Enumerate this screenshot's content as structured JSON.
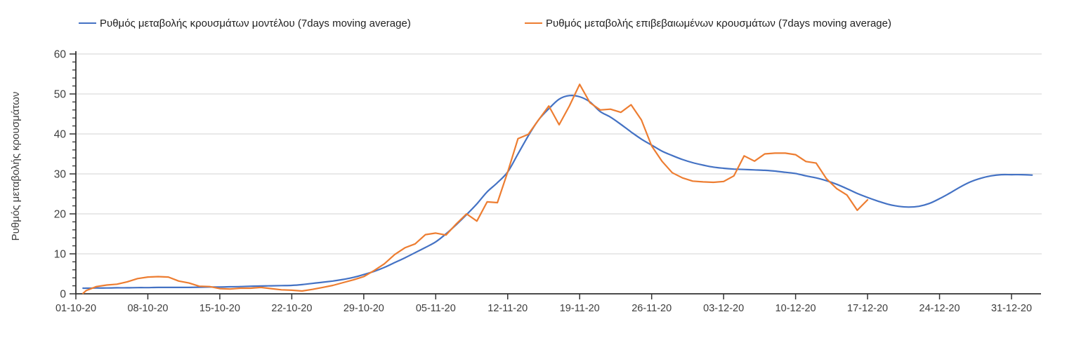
{
  "chart_data": {
    "type": "line",
    "title": "",
    "xlabel": "",
    "ylabel": "Ρυθμός μεταβολής κρουσμάτων",
    "x_unit": "days since 01-10-20",
    "grid": true,
    "legend_position": "top",
    "y_axis": {
      "min": 0,
      "max": 60,
      "major_step": 10,
      "minor_step": 2
    },
    "x_ticks": [
      "01-10-20",
      "08-10-20",
      "15-10-20",
      "22-10-20",
      "29-10-20",
      "05-11-20",
      "12-11-20",
      "19-11-20",
      "26-11-20",
      "03-12-20",
      "10-12-20",
      "17-12-20",
      "24-12-20",
      "31-12-20"
    ],
    "series": [
      {
        "name": "Ρυθμός μεταβολής κρουσμάτων μοντέλου (7days moving average)",
        "color": "#4472c4",
        "smooth": true,
        "points": [
          [
            0.7,
            1.4
          ],
          [
            1,
            1.4
          ],
          [
            2,
            1.45
          ],
          [
            3,
            1.45
          ],
          [
            4,
            1.5
          ],
          [
            5,
            1.5
          ],
          [
            6,
            1.55
          ],
          [
            7,
            1.55
          ],
          [
            8,
            1.6
          ],
          [
            9,
            1.6
          ],
          [
            10,
            1.6
          ],
          [
            11,
            1.6
          ],
          [
            12,
            1.65
          ],
          [
            13,
            1.7
          ],
          [
            14,
            1.7
          ],
          [
            15,
            1.75
          ],
          [
            16,
            1.8
          ],
          [
            17,
            1.9
          ],
          [
            18,
            1.95
          ],
          [
            19,
            2.0
          ],
          [
            20,
            2.05
          ],
          [
            21,
            2.1
          ],
          [
            22,
            2.3
          ],
          [
            23,
            2.6
          ],
          [
            24,
            2.9
          ],
          [
            25,
            3.2
          ],
          [
            26,
            3.6
          ],
          [
            27,
            4.1
          ],
          [
            28,
            4.8
          ],
          [
            29,
            5.6
          ],
          [
            30,
            6.6
          ],
          [
            31,
            7.8
          ],
          [
            32,
            9.0
          ],
          [
            33,
            10.3
          ],
          [
            34,
            11.6
          ],
          [
            35,
            13.0
          ],
          [
            36,
            15.0
          ],
          [
            37,
            17.3
          ],
          [
            38,
            19.8
          ],
          [
            39,
            22.5
          ],
          [
            40,
            25.5
          ],
          [
            41,
            27.8
          ],
          [
            42,
            30.5
          ],
          [
            43,
            35.0
          ],
          [
            44,
            39.5
          ],
          [
            45,
            43.5
          ],
          [
            46,
            46.3
          ],
          [
            47,
            48.7
          ],
          [
            48,
            49.6
          ],
          [
            49,
            49.3
          ],
          [
            50,
            48.0
          ],
          [
            51,
            45.6
          ],
          [
            52,
            44.2
          ],
          [
            53,
            42.4
          ],
          [
            54,
            40.5
          ],
          [
            55,
            38.7
          ],
          [
            56,
            37.2
          ],
          [
            57,
            35.7
          ],
          [
            58,
            34.6
          ],
          [
            59,
            33.6
          ],
          [
            60,
            32.8
          ],
          [
            61,
            32.2
          ],
          [
            62,
            31.7
          ],
          [
            63,
            31.4
          ],
          [
            64,
            31.2
          ],
          [
            65,
            31.1
          ],
          [
            66,
            31.0
          ],
          [
            67,
            30.9
          ],
          [
            68,
            30.7
          ],
          [
            69,
            30.4
          ],
          [
            70,
            30.1
          ],
          [
            71,
            29.5
          ],
          [
            72,
            29.0
          ],
          [
            73,
            28.3
          ],
          [
            74,
            27.4
          ],
          [
            75,
            26.3
          ],
          [
            76,
            25.1
          ],
          [
            77,
            24.1
          ],
          [
            78,
            23.2
          ],
          [
            79,
            22.4
          ],
          [
            80,
            21.9
          ],
          [
            81,
            21.7
          ],
          [
            82,
            21.9
          ],
          [
            83,
            22.6
          ],
          [
            84,
            23.8
          ],
          [
            85,
            25.2
          ],
          [
            86,
            26.7
          ],
          [
            87,
            28.0
          ],
          [
            88,
            28.9
          ],
          [
            89,
            29.5
          ],
          [
            90,
            29.8
          ],
          [
            91,
            29.8
          ],
          [
            92,
            29.8
          ],
          [
            93,
            29.7
          ]
        ]
      },
      {
        "name": "Ρυθμός μεταβολής επιβεβαιωμένων κρουσμάτων (7days moving average)",
        "color": "#ed7d31",
        "smooth": false,
        "points": [
          [
            0.7,
            0.1
          ],
          [
            1,
            0.8
          ],
          [
            2,
            1.8
          ],
          [
            3,
            2.2
          ],
          [
            4,
            2.4
          ],
          [
            5,
            3.0
          ],
          [
            6,
            3.8
          ],
          [
            7,
            4.2
          ],
          [
            8,
            4.3
          ],
          [
            9,
            4.2
          ],
          [
            10,
            3.2
          ],
          [
            11,
            2.7
          ],
          [
            12,
            1.9
          ],
          [
            13,
            1.8
          ],
          [
            14,
            1.3
          ],
          [
            15,
            1.2
          ],
          [
            16,
            1.4
          ],
          [
            17,
            1.4
          ],
          [
            18,
            1.6
          ],
          [
            19,
            1.3
          ],
          [
            20,
            1.0
          ],
          [
            21,
            0.9
          ],
          [
            22,
            0.7
          ],
          [
            23,
            1.1
          ],
          [
            24,
            1.6
          ],
          [
            25,
            2.1
          ],
          [
            26,
            2.8
          ],
          [
            27,
            3.5
          ],
          [
            28,
            4.3
          ],
          [
            29,
            5.8
          ],
          [
            30,
            7.5
          ],
          [
            31,
            9.8
          ],
          [
            32,
            11.5
          ],
          [
            33,
            12.5
          ],
          [
            34,
            14.8
          ],
          [
            35,
            15.2
          ],
          [
            36,
            14.7
          ],
          [
            37,
            17.5
          ],
          [
            38,
            20.0
          ],
          [
            39,
            18.2
          ],
          [
            40,
            23.0
          ],
          [
            41,
            22.8
          ],
          [
            42,
            30.5
          ],
          [
            43,
            38.8
          ],
          [
            44,
            39.9
          ],
          [
            45,
            43.5
          ],
          [
            46,
            47.0
          ],
          [
            47,
            42.3
          ],
          [
            48,
            47.0
          ],
          [
            49,
            52.4
          ],
          [
            50,
            47.8
          ],
          [
            51,
            46.0
          ],
          [
            52,
            46.2
          ],
          [
            53,
            45.4
          ],
          [
            54,
            47.3
          ],
          [
            55,
            43.5
          ],
          [
            56,
            37.0
          ],
          [
            57,
            33.2
          ],
          [
            58,
            30.3
          ],
          [
            59,
            29.0
          ],
          [
            60,
            28.2
          ],
          [
            61,
            28.0
          ],
          [
            62,
            27.9
          ],
          [
            63,
            28.1
          ],
          [
            64,
            29.5
          ],
          [
            65,
            34.5
          ],
          [
            66,
            33.2
          ],
          [
            67,
            35.0
          ],
          [
            68,
            35.2
          ],
          [
            69,
            35.2
          ],
          [
            70,
            34.8
          ],
          [
            71,
            33.1
          ],
          [
            72,
            32.7
          ],
          [
            73,
            28.8
          ],
          [
            74,
            26.3
          ],
          [
            75,
            24.7
          ],
          [
            76,
            20.9
          ],
          [
            77,
            23.5
          ]
        ]
      }
    ],
    "colors": {
      "gridline": "#e2e2e2",
      "axis": "#333333",
      "tick_label": "#3d3d3d",
      "legend_text": "#212121"
    }
  },
  "legend": {
    "items": [
      {
        "label": "Ρυθμός μεταβολής κρουσμάτων μοντέλου (7days moving average)"
      },
      {
        "label": "Ρυθμός μεταβολής επιβεβαιωμένων κρουσμάτων (7days moving average)"
      }
    ]
  }
}
